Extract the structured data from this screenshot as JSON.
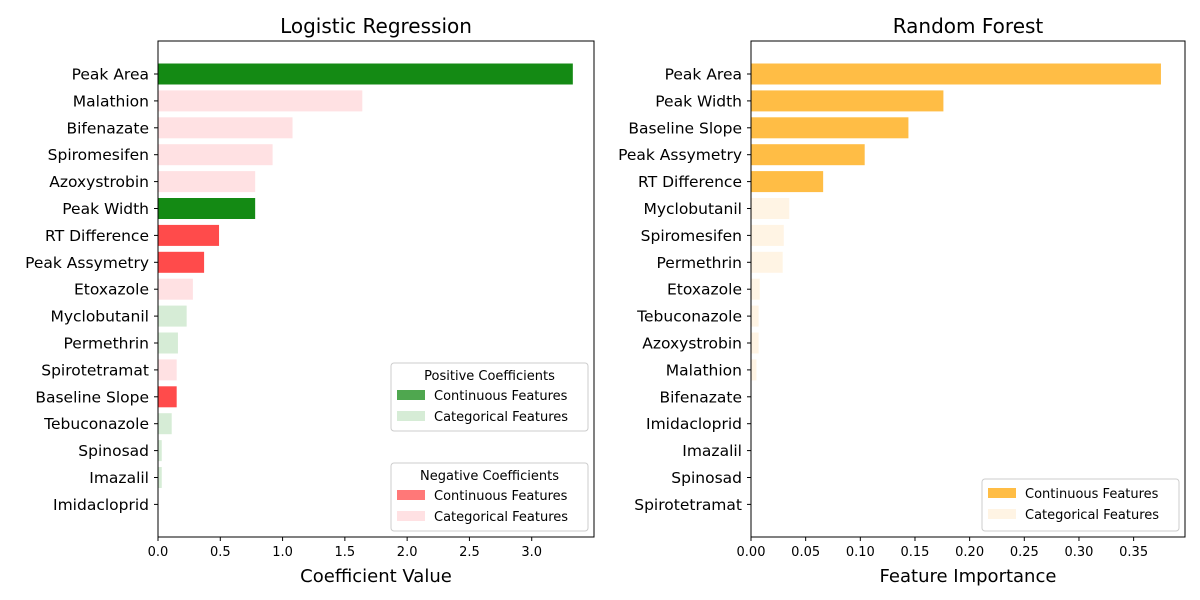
{
  "chart_data": [
    {
      "type": "bar",
      "orientation": "horizontal",
      "title": "Logistic Regression",
      "xlabel": "Coefficient Value",
      "ylabel": "",
      "xlim": [
        0,
        3.5
      ],
      "xticks": [
        0.0,
        0.5,
        1.0,
        1.5,
        2.0,
        2.5,
        3.0
      ],
      "xtick_labels": [
        "0.0",
        "0.5",
        "1.0",
        "1.5",
        "2.0",
        "2.5",
        "3.0"
      ],
      "grid": false,
      "categories": [
        "Peak Area",
        "Malathion",
        "Bifenazate",
        "Spiromesifen",
        "Azoxystrobin",
        "Peak Width",
        "RT Difference",
        "Peak Assymetry",
        "Etoxazole",
        "Myclobutanil",
        "Permethrin",
        "Spirotetramat",
        "Baseline Slope",
        "Tebuconazole",
        "Spinosad",
        "Imazalil",
        "Imidacloprid"
      ],
      "values": [
        3.33,
        1.64,
        1.08,
        0.92,
        0.78,
        0.78,
        0.49,
        0.37,
        0.28,
        0.23,
        0.16,
        0.15,
        0.15,
        0.11,
        0.03,
        0.03,
        0.0
      ],
      "kinds": [
        "pos-cont",
        "neg-cat",
        "neg-cat",
        "neg-cat",
        "neg-cat",
        "pos-cont",
        "neg-cont",
        "neg-cont",
        "neg-cat",
        "pos-cat",
        "pos-cat",
        "neg-cat",
        "neg-cont",
        "pos-cat",
        "pos-cat",
        "pos-cat",
        "pos-cat"
      ],
      "colors": {
        "pos-cont": "#148a14",
        "pos-cat": "#d6ecd6",
        "neg-cont": "#ff4b4b",
        "neg-cat": "#ffe1e3"
      },
      "legends": [
        {
          "title": "Positive Coefficients",
          "placement": "lower-right",
          "entries": [
            {
              "label": "Continuous Features",
              "color": "#148a14"
            },
            {
              "label": "Categorical Features",
              "color": "#d6ecd6"
            }
          ]
        },
        {
          "title": "Negative Coefficients",
          "placement": "lower-right",
          "entries": [
            {
              "label": "Continuous Features",
              "color": "#ff4b4b"
            },
            {
              "label": "Categorical Features",
              "color": "#ffe1e3"
            }
          ]
        }
      ]
    },
    {
      "type": "bar",
      "orientation": "horizontal",
      "title": "Random Forest",
      "xlabel": "Feature Importance",
      "ylabel": "",
      "xlim": [
        0,
        0.397
      ],
      "xticks": [
        0.0,
        0.05,
        0.1,
        0.15,
        0.2,
        0.25,
        0.3,
        0.35
      ],
      "xtick_labels": [
        "0.00",
        "0.05",
        "0.10",
        "0.15",
        "0.20",
        "0.25",
        "0.30",
        "0.35"
      ],
      "grid": false,
      "categories": [
        "Peak Area",
        "Peak Width",
        "Baseline Slope",
        "Peak Assymetry",
        "RT Difference",
        "Myclobutanil",
        "Spiromesifen",
        "Permethrin",
        "Etoxazole",
        "Tebuconazole",
        "Azoxystrobin",
        "Malathion",
        "Bifenazate",
        "Imidacloprid",
        "Imazalil",
        "Spinosad",
        "Spirotetramat"
      ],
      "values": [
        0.375,
        0.176,
        0.144,
        0.104,
        0.066,
        0.035,
        0.03,
        0.029,
        0.008,
        0.007,
        0.007,
        0.005,
        0.0,
        0.0,
        0.0,
        0.0,
        0.0
      ],
      "kinds": [
        "cont",
        "cont",
        "cont",
        "cont",
        "cont",
        "cat",
        "cat",
        "cat",
        "cat",
        "cat",
        "cat",
        "cat",
        "cat",
        "cat",
        "cat",
        "cat",
        "cat"
      ],
      "colors": {
        "cont": "#ffbd45",
        "cat": "#fff4e4"
      },
      "legends": [
        {
          "title": "",
          "placement": "lower-right",
          "entries": [
            {
              "label": "Continuous Features",
              "color": "#ffbd45"
            },
            {
              "label": "Categorical Features",
              "color": "#fff4e4"
            }
          ]
        }
      ]
    }
  ]
}
